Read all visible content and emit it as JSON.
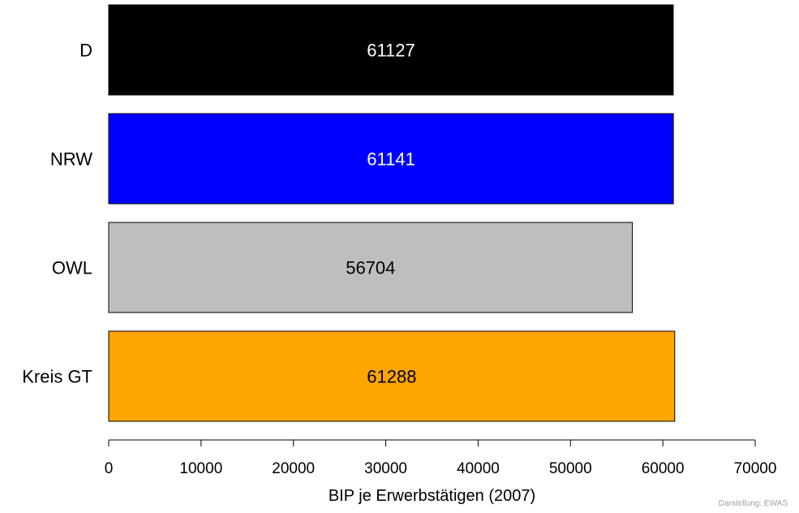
{
  "chart_data": {
    "type": "bar",
    "orientation": "horizontal",
    "categories": [
      "D",
      "NRW",
      "OWL",
      "Kreis GT"
    ],
    "values": [
      61127,
      61141,
      56704,
      61288
    ],
    "data_labels": [
      "61127",
      "61141",
      "56704",
      "61288"
    ],
    "colors": [
      "#000000",
      "#0000FF",
      "#BEBEBE",
      "#FFA500"
    ],
    "label_colors": [
      "#FFFFFF",
      "#FFFFFF",
      "#000000",
      "#000000"
    ],
    "xlabel": "BIP je Erwerbstätigen (2007)",
    "xlim": [
      0,
      70000
    ],
    "xticks": [
      0,
      10000,
      20000,
      30000,
      40000,
      50000,
      60000,
      70000
    ],
    "xtick_labels": [
      "0",
      "10000",
      "20000",
      "30000",
      "40000",
      "50000",
      "60000",
      "70000"
    ],
    "grid": false
  },
  "credit": "Darstellung: EWAS"
}
